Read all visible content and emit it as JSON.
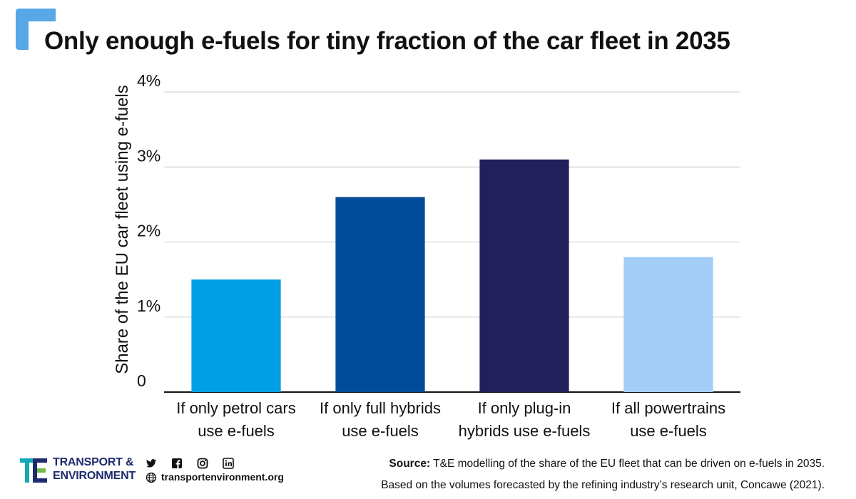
{
  "title": "Only enough e-fuels for tiny fraction of the car fleet in 2035",
  "footer": {
    "source_label": "Source:",
    "source_text": "T&E modelling of the share of the EU fleet that can be driven on e-fuels in 2035.",
    "source_text_2": "Based on the volumes forecasted by the refining industry’s research unit, Concawe (2021).",
    "logo_line_1": "TRANSPORT &",
    "logo_line_2": "ENVIRONMENT",
    "website": "transportenvironment.org",
    "icons": [
      "twitter-icon",
      "facebook-icon",
      "instagram-icon",
      "linkedin-icon",
      "globe-icon"
    ]
  },
  "colors": {
    "accent": "#56a8e6",
    "bar_1": "#009fe3",
    "bar_2": "#004c99",
    "bar_3": "#221f5b",
    "bar_4": "#a3cdf7",
    "logo_navy": "#1e2b6e",
    "logo_teal": "#13a8b7",
    "logo_green": "#6dbd45"
  },
  "chart_data": {
    "type": "bar",
    "title": "Only enough e-fuels for tiny fraction of the car fleet in 2035",
    "ylabel": "Share of the EU car fleet using e-fuels",
    "xlabel": "",
    "ylim": [
      0,
      4
    ],
    "yticks": [
      0,
      1,
      2,
      3,
      4
    ],
    "ytick_labels": [
      "0",
      "1%",
      "2%",
      "3%",
      "4%"
    ],
    "grid": true,
    "categories": [
      [
        "If only petrol cars",
        "use e-fuels"
      ],
      [
        "If only full hybrids",
        "use e-fuels"
      ],
      [
        "If only plug-in",
        "hybrids use e-fuels"
      ],
      [
        "If all powertrains",
        "use e-fuels"
      ]
    ],
    "values": [
      1.5,
      2.6,
      3.1,
      1.8
    ],
    "unit": "%"
  }
}
